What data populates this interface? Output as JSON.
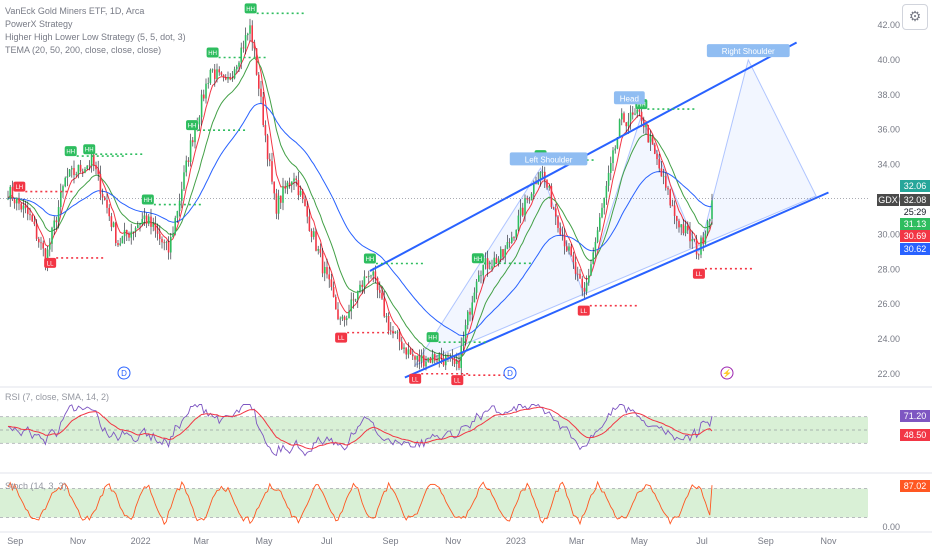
{
  "header": {
    "symbol_line": "VanEck Gold Miners ETF, 1D, Arca",
    "study1": "PowerX Strategy",
    "study2": "Higher High Lower Low Strategy (5, 5, dot, 3)",
    "study3": "TEMA (20, 50, 200, close, close, close)"
  },
  "ticker": "GDX",
  "price_labels": {
    "last": "32.06",
    "ticker_price": "32.08",
    "countdown": "25:29",
    "tema_fast": "31.13",
    "tema_mid": "30.69",
    "tema_slow": "30.62",
    "rsi_value": "71.20",
    "rsi_ma_value": "48.50",
    "stoch_value": "87.02"
  },
  "panes": {
    "rsi_label": "RSI (7, close, SMA, 14, 2)",
    "stoch_label": "Stoch (14, 3, 3)"
  },
  "annotations": {
    "head": "Head",
    "left_shoulder": "Left Shoulder",
    "right_shoulder": "Right Shoulder",
    "event_dividend": "D",
    "event_split": "⚡"
  },
  "colors": {
    "up": "#26a69a",
    "down": "#ef5350",
    "hh_green": "#2ebd5f",
    "ll_red": "#f23645",
    "trend_blue": "#2962ff",
    "tema_red": "#f23645",
    "tema_green": "#43a047",
    "tema_blue": "#2962ff",
    "rsi": "#7e57c2",
    "stoch": "#ff5722",
    "band_green": "#d9f0d6"
  },
  "chart_data": {
    "type": "candlestick",
    "title": "VanEck Gold Miners ETF, 1D, Arca",
    "x_tick_labels": [
      "Sep",
      "Nov",
      "2022",
      "Mar",
      "May",
      "Jul",
      "Sep",
      "Nov",
      "2023",
      "Mar",
      "May",
      "Jul",
      "Sep",
      "Nov"
    ],
    "y_axis": {
      "ylim": [
        21,
        43
      ],
      "ticks": [
        22,
        24,
        26,
        28,
        30,
        32,
        34,
        36,
        38,
        40,
        42
      ]
    },
    "close_path": [
      {
        "t": "2021-08-25",
        "close": 32.5
      },
      {
        "t": "2021-09-15",
        "close": 31.0
      },
      {
        "t": "2021-10-01",
        "close": 28.6
      },
      {
        "t": "2021-10-20",
        "close": 33.2
      },
      {
        "t": "2021-11-15",
        "close": 34.2
      },
      {
        "t": "2021-12-10",
        "close": 29.5
      },
      {
        "t": "2022-01-05",
        "close": 31.0
      },
      {
        "t": "2022-01-28",
        "close": 29.0
      },
      {
        "t": "2022-02-20",
        "close": 35.5
      },
      {
        "t": "2022-03-10",
        "close": 39.5
      },
      {
        "t": "2022-03-25",
        "close": 38.5
      },
      {
        "t": "2022-04-18",
        "close": 41.9
      },
      {
        "t": "2022-05-12",
        "close": 31.5
      },
      {
        "t": "2022-05-30",
        "close": 33.5
      },
      {
        "t": "2022-06-20",
        "close": 29.5
      },
      {
        "t": "2022-07-15",
        "close": 24.8
      },
      {
        "t": "2022-08-12",
        "close": 28.0
      },
      {
        "t": "2022-09-01",
        "close": 24.5
      },
      {
        "t": "2022-09-25",
        "close": 22.8
      },
      {
        "t": "2022-10-20",
        "close": 23.0
      },
      {
        "t": "2022-11-05",
        "close": 22.3
      },
      {
        "t": "2022-11-25",
        "close": 28.0
      },
      {
        "t": "2022-12-20",
        "close": 28.8
      },
      {
        "t": "2023-01-25",
        "close": 33.8
      },
      {
        "t": "2023-03-08",
        "close": 26.4
      },
      {
        "t": "2023-04-13",
        "close": 36.5
      },
      {
        "t": "2023-05-03",
        "close": 36.8
      },
      {
        "t": "2023-06-05",
        "close": 31.0
      },
      {
        "t": "2023-06-28",
        "close": 29.0
      },
      {
        "t": "2023-07-12",
        "close": 32.06
      }
    ],
    "hhll_markers": [
      {
        "t": "2021-09-05",
        "label": "LH"
      },
      {
        "t": "2021-10-05",
        "label": "LL"
      },
      {
        "t": "2021-10-25",
        "label": "HH"
      },
      {
        "t": "2021-11-12",
        "label": "HH"
      },
      {
        "t": "2022-01-08",
        "label": "HH"
      },
      {
        "t": "2022-02-20",
        "label": "HH"
      },
      {
        "t": "2022-03-12",
        "label": "HH"
      },
      {
        "t": "2022-04-18",
        "label": "HH"
      },
      {
        "t": "2022-07-15",
        "label": "LL"
      },
      {
        "t": "2022-08-12",
        "label": "HH"
      },
      {
        "t": "2022-09-25",
        "label": "LL"
      },
      {
        "t": "2022-10-12",
        "label": "HH"
      },
      {
        "t": "2022-11-05",
        "label": "LL"
      },
      {
        "t": "2022-11-25",
        "label": "HH"
      },
      {
        "t": "2023-01-25",
        "label": "HH"
      },
      {
        "t": "2023-03-08",
        "label": "LL"
      },
      {
        "t": "2023-05-03",
        "label": "HH"
      },
      {
        "t": "2023-06-28",
        "label": "LL"
      }
    ],
    "trendlines": [
      {
        "name": "upper channel",
        "p1": {
          "t": "2022-08-12",
          "price": 27.9
        },
        "p2": {
          "t": "2023-10-01",
          "price": 41.0
        }
      },
      {
        "name": "lower channel",
        "p1": {
          "t": "2022-09-15",
          "price": 21.8
        },
        "p2": {
          "t": "2023-11-01",
          "price": 32.4
        }
      }
    ],
    "head_and_shoulders_projection": [
      {
        "t": "2022-09-25",
        "price": 22.5
      },
      {
        "t": "2023-01-25",
        "price": 33.8
      },
      {
        "t": "2023-03-08",
        "price": 26.5
      },
      {
        "t": "2023-05-03",
        "price": 36.8
      },
      {
        "t": "2023-06-28",
        "price": 29.0
      },
      {
        "t": "2023-08-15",
        "price": 40.0
      },
      {
        "t": "2023-10-20",
        "price": 32.2
      }
    ],
    "indicators": [
      {
        "name": "RSI (7, close, SMA, 14, 2)",
        "last": 71.2,
        "ma_last": 48.5,
        "band": [
          30,
          70
        ]
      },
      {
        "name": "Stoch (14, 3, 3)",
        "last": 87.02,
        "band": [
          20,
          80
        ],
        "axis_tick": 0
      }
    ]
  }
}
